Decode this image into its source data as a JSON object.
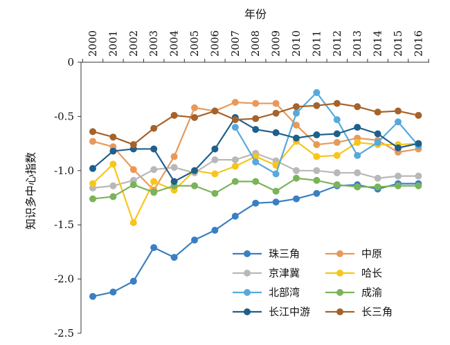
{
  "chart_data": {
    "type": "line",
    "title": "",
    "xlabel": "年份",
    "ylabel": "知识多中心指数",
    "x": [
      "2000",
      "2001",
      "2002",
      "2003",
      "2004",
      "2005",
      "2006",
      "2007",
      "2008",
      "2009",
      "2010",
      "2011",
      "2012",
      "2013",
      "2014",
      "2015",
      "2016"
    ],
    "ylim": [
      -2.5,
      0
    ],
    "yticks": [
      0,
      -0.5,
      -1.0,
      -1.5,
      -2.0,
      -2.5
    ],
    "ytick_labels": [
      "0",
      "-0.5",
      "-1.0",
      "-1.5",
      "-2.0",
      "-2.5"
    ],
    "x_axis_position": "top",
    "y_direction": "inverted",
    "grid": false,
    "legend_position": "bottom-right",
    "series": [
      {
        "name": "珠三角",
        "color": "#3a7fc1",
        "values": [
          -2.16,
          -2.12,
          -2.02,
          -1.71,
          -1.8,
          -1.64,
          -1.55,
          -1.42,
          -1.3,
          -1.29,
          -1.26,
          -1.21,
          -1.14,
          -1.13,
          -1.17,
          -1.12,
          -1.12
        ]
      },
      {
        "name": "中原",
        "color": "#e8995a",
        "values": [
          -0.73,
          -0.78,
          -0.99,
          -1.18,
          -0.87,
          -0.42,
          -0.45,
          -0.37,
          -0.38,
          -0.38,
          -0.58,
          -0.76,
          -0.74,
          -0.7,
          -0.72,
          -0.83,
          -0.8
        ]
      },
      {
        "name": "京津冀",
        "color": "#b8b8b8",
        "values": [
          -1.16,
          -1.14,
          -1.09,
          -0.99,
          -0.97,
          -1.02,
          -0.9,
          -0.9,
          -0.84,
          -0.91,
          -1.0,
          -1.0,
          -1.02,
          -1.02,
          -1.07,
          -1.05,
          -1.05
        ]
      },
      {
        "name": "哈长",
        "color": "#f8c51a",
        "values": [
          -1.12,
          -0.94,
          -1.48,
          -1.1,
          -1.18,
          -1.0,
          -1.03,
          -0.96,
          -0.87,
          -0.95,
          -0.73,
          -0.87,
          -0.86,
          -0.74,
          -0.76,
          -0.76,
          -0.75
        ]
      },
      {
        "name": "北部湾",
        "color": "#56a9dc",
        "values": [
          null,
          null,
          null,
          null,
          null,
          null,
          null,
          -0.6,
          -0.92,
          -1.03,
          -0.47,
          -0.28,
          -0.53,
          -0.86,
          -0.74,
          -0.55,
          -0.77
        ]
      },
      {
        "name": "成渝",
        "color": "#7bb35a",
        "values": [
          -1.26,
          -1.24,
          -1.13,
          -1.2,
          -1.14,
          -1.14,
          -1.21,
          -1.1,
          -1.1,
          -1.19,
          -1.07,
          -1.09,
          -1.13,
          -1.15,
          -1.15,
          -1.14,
          -1.14
        ]
      },
      {
        "name": "长江中游",
        "color": "#1f5f8b",
        "values": [
          -0.98,
          -0.82,
          -0.8,
          -0.8,
          -1.1,
          -1.0,
          -0.8,
          -0.51,
          -0.62,
          -0.65,
          -0.7,
          -0.67,
          -0.66,
          -0.6,
          -0.66,
          -0.79,
          -0.75
        ]
      },
      {
        "name": "长三角",
        "color": "#a6622a",
        "values": [
          -0.64,
          -0.69,
          -0.76,
          -0.61,
          -0.49,
          -0.51,
          -0.45,
          -0.53,
          -0.52,
          -0.47,
          -0.41,
          -0.4,
          -0.38,
          -0.41,
          -0.46,
          -0.45,
          -0.49
        ]
      }
    ]
  }
}
